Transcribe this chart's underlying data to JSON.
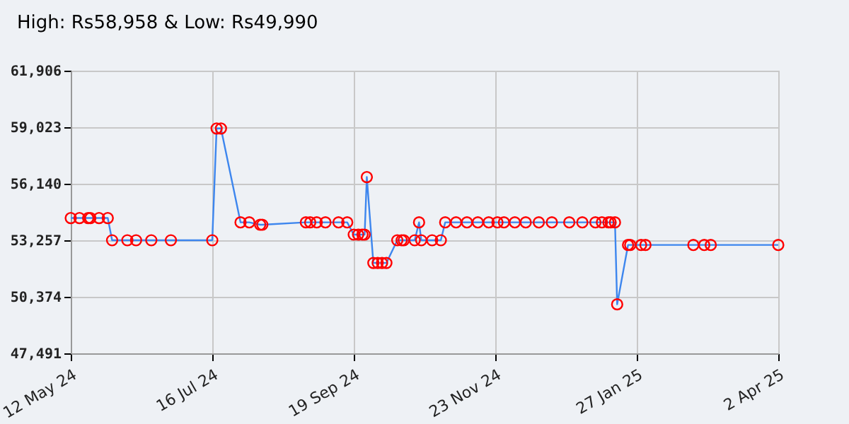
{
  "chart_data": {
    "type": "line",
    "title": "High: Rs58,958 & Low: Rs49,990",
    "x": [
      "2024-05-12",
      "2024-05-16",
      "2024-05-20",
      "2024-05-21",
      "2024-05-25",
      "2024-05-29",
      "2024-05-31",
      "2024-06-07",
      "2024-06-11",
      "2024-06-18",
      "2024-06-27",
      "2024-07-16",
      "2024-07-18",
      "2024-07-20",
      "2024-07-29",
      "2024-08-02",
      "2024-08-07",
      "2024-08-08",
      "2024-08-28",
      "2024-08-30",
      "2024-09-02",
      "2024-09-06",
      "2024-09-12",
      "2024-09-16",
      "2024-09-19",
      "2024-09-21",
      "2024-09-23",
      "2024-09-24",
      "2024-09-25",
      "2024-09-28",
      "2024-09-30",
      "2024-10-02",
      "2024-10-04",
      "2024-10-09",
      "2024-10-11",
      "2024-10-12",
      "2024-10-17",
      "2024-10-19",
      "2024-10-20",
      "2024-10-25",
      "2024-10-29",
      "2024-10-31",
      "2024-11-05",
      "2024-11-10",
      "2024-11-15",
      "2024-11-20",
      "2024-11-24",
      "2024-11-27",
      "2024-12-02",
      "2024-12-07",
      "2024-12-13",
      "2024-12-19",
      "2024-12-27",
      "2025-01-02",
      "2025-01-08",
      "2025-01-11",
      "2025-01-14",
      "2025-01-15",
      "2025-01-17",
      "2025-01-18",
      "2025-01-23",
      "2025-01-24",
      "2025-01-29",
      "2025-01-31",
      "2025-02-22",
      "2025-02-27",
      "2025-03-02",
      "2025-04-02"
    ],
    "series": [
      {
        "color": "#3d86ee",
        "values": [
          54390,
          54390,
          54390,
          54390,
          54390,
          54390,
          53257,
          53257,
          53257,
          53257,
          53257,
          53257,
          58958,
          58958,
          54170,
          54170,
          54050,
          54050,
          54170,
          54170,
          54170,
          54170,
          54170,
          54170,
          53545,
          53545,
          53545,
          53545,
          56480,
          52100,
          52100,
          52100,
          52100,
          53257,
          53257,
          53257,
          53257,
          54170,
          53257,
          53257,
          53257,
          54170,
          54170,
          54170,
          54170,
          54170,
          54170,
          54170,
          54170,
          54170,
          54170,
          54170,
          54170,
          54170,
          54170,
          54170,
          54170,
          54170,
          54170,
          49990,
          53017,
          53017,
          53017,
          53017,
          53017,
          53017,
          53017,
          53017
        ]
      }
    ],
    "xlim": [
      "2024-05-12",
      "2025-04-02"
    ],
    "xticks": [
      {
        "value": "2024-05-12",
        "label": "12 May 24"
      },
      {
        "value": "2024-07-16",
        "label": "16 Jul 24"
      },
      {
        "value": "2024-09-19",
        "label": "19 Sep 24"
      },
      {
        "value": "2024-11-23",
        "label": "23 Nov 24"
      },
      {
        "value": "2025-01-27",
        "label": "27 Jan 25"
      },
      {
        "value": "2025-04-02",
        "label": "2 Apr 25"
      }
    ],
    "ylim": [
      47491,
      61906
    ],
    "yticks": [
      {
        "value": 47491,
        "label": "47,491"
      },
      {
        "value": 50374,
        "label": "50,374"
      },
      {
        "value": 53257,
        "label": "53,257"
      },
      {
        "value": 56140,
        "label": "56,140"
      },
      {
        "value": 59023,
        "label": "59,023"
      },
      {
        "value": 61906,
        "label": "61,906"
      }
    ],
    "grid": true,
    "marker": "circle",
    "line_style": "solid"
  }
}
